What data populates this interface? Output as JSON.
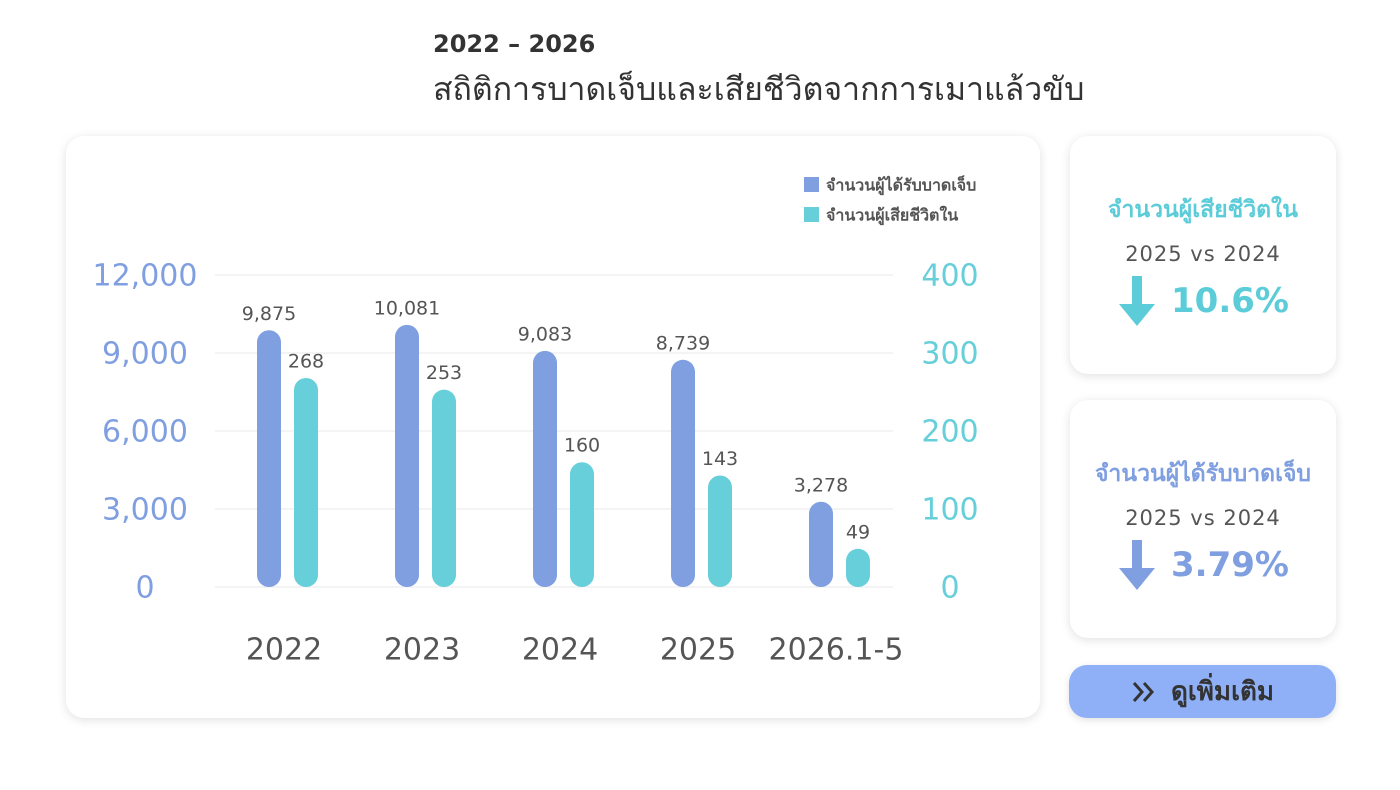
{
  "header": {
    "subtitle": "2022 – 2026",
    "title": "สถิติการบาดเจ็บและเสียชีวิตจากการเมาแล้วขับ"
  },
  "chart_data": {
    "type": "bar",
    "categories": [
      "2022",
      "2023",
      "2024",
      "2025",
      "2026.1-5"
    ],
    "series": [
      {
        "name": "จำนวนผู้ได้รับบาดเจ็บ",
        "color": "#7f9fe0",
        "values": [
          9875,
          10081,
          9083,
          8739,
          3278
        ],
        "value_labels": [
          "9,875",
          "10,081",
          "9,083",
          "8,739",
          "3,278"
        ]
      },
      {
        "name": "จำนวนผู้เสียชีวิตใน",
        "color": "#66cfd9",
        "axis": "y2",
        "values": [
          268,
          253,
          160,
          143,
          49
        ]
      }
    ],
    "ylim": [
      0,
      12000
    ],
    "yticks": [
      0,
      {
        "value": 3000,
        "label": "3,000"
      },
      {
        "value": 6000,
        "label": "6,000"
      },
      {
        "value": 9000,
        "label": "9,000"
      },
      {
        "value": 12000,
        "label": "12,000"
      }
    ],
    "y2lim": [
      0,
      400
    ],
    "y2ticks": [
      0,
      100,
      200,
      300,
      400
    ],
    "grid": true,
    "legend": "top-right"
  },
  "cards": [
    {
      "title": "จำนวนผู้เสียชีวิตใน",
      "comparison": "2025 vs 2024",
      "change": "10.6%",
      "color": "#5ccdd8"
    },
    {
      "title": "จำนวนผู้ได้รับบาดเจ็บ",
      "comparison": "2025 vs 2024",
      "change": "3.79%",
      "color": "#7f9fe0"
    }
  ],
  "button": {
    "label": "ดูเพิ่มเติม"
  }
}
